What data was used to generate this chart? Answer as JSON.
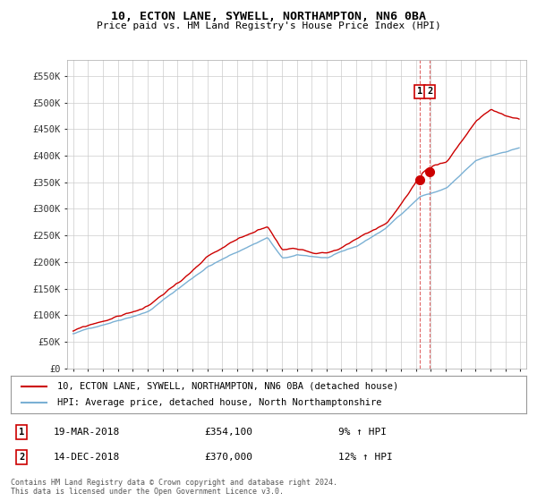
{
  "title": "10, ECTON LANE, SYWELL, NORTHAMPTON, NN6 0BA",
  "subtitle": "Price paid vs. HM Land Registry's House Price Index (HPI)",
  "ylabel_ticks": [
    "£0",
    "£50K",
    "£100K",
    "£150K",
    "£200K",
    "£250K",
    "£300K",
    "£350K",
    "£400K",
    "£450K",
    "£500K",
    "£550K"
  ],
  "ytick_values": [
    0,
    50000,
    100000,
    150000,
    200000,
    250000,
    300000,
    350000,
    400000,
    450000,
    500000,
    550000
  ],
  "ylim": [
    0,
    580000
  ],
  "legend_line1": "10, ECTON LANE, SYWELL, NORTHAMPTON, NN6 0BA (detached house)",
  "legend_line2": "HPI: Average price, detached house, North Northamptonshire",
  "annotation1_num": "1",
  "annotation1_date": "19-MAR-2018",
  "annotation1_price": "£354,100",
  "annotation1_hpi": "9% ↑ HPI",
  "annotation2_num": "2",
  "annotation2_date": "14-DEC-2018",
  "annotation2_price": "£370,000",
  "annotation2_hpi": "12% ↑ HPI",
  "footnote": "Contains HM Land Registry data © Crown copyright and database right 2024.\nThis data is licensed under the Open Government Licence v3.0.",
  "red_color": "#cc0000",
  "blue_color": "#7ab0d4",
  "background_color": "#ffffff",
  "grid_color": "#cccccc",
  "sale1_idx": 279,
  "sale2_idx": 287,
  "sale1_price": 354100,
  "sale2_price": 370000
}
